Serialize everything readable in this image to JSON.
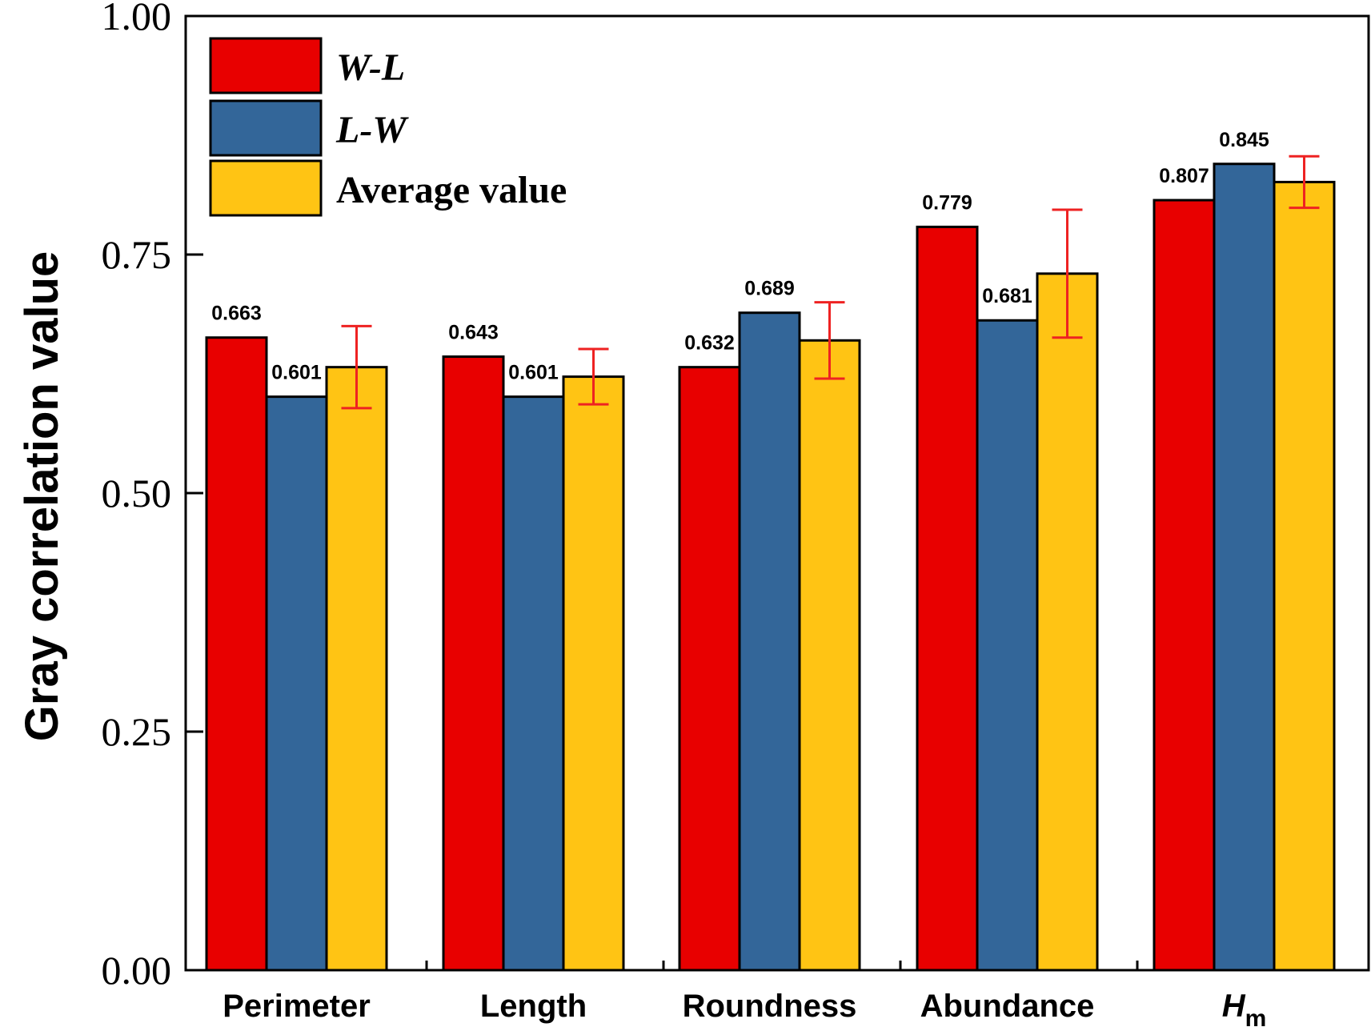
{
  "chart_data": {
    "type": "bar",
    "ylabel": "Gray correlation value",
    "xlabel": "",
    "ylim": [
      0,
      1.0
    ],
    "yticks": [
      "0.00",
      "0.25",
      "0.50",
      "0.75",
      "1.00"
    ],
    "categories": [
      "Perimeter",
      "Length",
      "Roundness",
      "Abundance",
      "H"
    ],
    "category_subscripts": [
      "",
      "",
      "",
      "",
      "m"
    ],
    "series": [
      {
        "name": "W-L",
        "color": "#e80000",
        "values": [
          0.663,
          0.643,
          0.632,
          0.779,
          0.807
        ],
        "labels": [
          "0.663",
          "0.643",
          "0.632",
          "0.779",
          "0.807"
        ]
      },
      {
        "name": "L-W",
        "color": "#336699",
        "values": [
          0.601,
          0.601,
          0.689,
          0.681,
          0.845
        ],
        "labels": [
          "0.601",
          "0.601",
          "0.689",
          "0.681",
          "0.845"
        ]
      },
      {
        "name": "Average value",
        "color": "#ffc414",
        "values": [
          0.632,
          0.622,
          0.66,
          0.73,
          0.826
        ],
        "errors": [
          0.043,
          0.029,
          0.04,
          0.067,
          0.027
        ]
      }
    ],
    "error_bar_color": "#ee2222",
    "legend_position": "top-left",
    "grid": false
  }
}
